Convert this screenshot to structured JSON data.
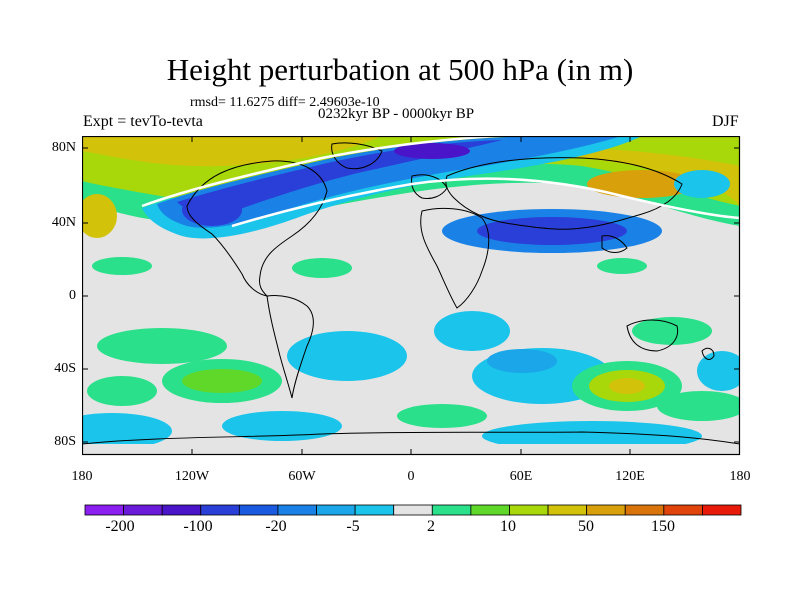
{
  "title": "Height perturbation at 500 hPa (in m)",
  "stats_line": "rmsd= 11.6275 diff= 2.49603e-10",
  "period_line": "0232kyr BP - 0000kyr BP",
  "experiment_label": "Expt = tevTo-tevta",
  "season_label": "DJF",
  "lat_ticks": [
    "80N",
    "40N",
    "0",
    "40S",
    "80S"
  ],
  "lon_ticks": [
    "180",
    "120W",
    "60W",
    "0",
    "60E",
    "120E",
    "180"
  ],
  "colorbar_labels": [
    "-200",
    "-100",
    "-20",
    "-5",
    "2",
    "10",
    "50",
    "150"
  ],
  "colorbar_colors": [
    "#8a1ff0",
    "#6a1ad8",
    "#4a14c8",
    "#2a3ed8",
    "#1a5ae0",
    "#1a82e6",
    "#1aa6e8",
    "#1ac4ea",
    "#e4e4e4",
    "#2ae08a",
    "#60d82a",
    "#a8d80a",
    "#d2c20a",
    "#d8a00a",
    "#d8740a",
    "#e0440a",
    "#e81a0a"
  ]
}
